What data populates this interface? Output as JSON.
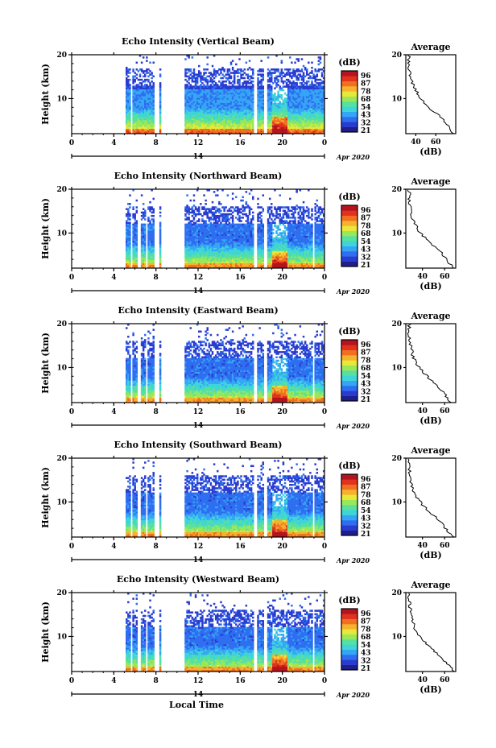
{
  "colorbar": {
    "unit": "(dB)",
    "ticks": [
      "96",
      "87",
      "78",
      "68",
      "54",
      "43",
      "32",
      "21"
    ],
    "colors": [
      "#1e1e8c",
      "#2a3ccf",
      "#2f6ef0",
      "#35a6f5",
      "#3fd4d8",
      "#57e0a0",
      "#9ae85a",
      "#e8e83a",
      "#f6b22e",
      "#f07020",
      "#e0321e",
      "#b4141e"
    ]
  },
  "x_axis": {
    "ticks": [
      "0",
      "4",
      "8",
      "12",
      "16",
      "20",
      "0"
    ],
    "date_label": "14",
    "month_label": "Apr 2020",
    "xlabel": "Local Time"
  },
  "y_axis": {
    "ylabel": "Height (km)",
    "ticks": [
      "20",
      "10"
    ]
  },
  "profile": {
    "title": "Average",
    "xlabel": "(dB)",
    "yticks": [
      "20",
      "10"
    ]
  },
  "chart_data": [
    {
      "type": "heatmap",
      "title": "Echo Intensity (Vertical Beam)",
      "x_range_hours": [
        0,
        24
      ],
      "y_range_km": [
        2,
        20
      ],
      "gaps_hours": [
        [
          0,
          5.2
        ],
        [
          5.6,
          5.8
        ],
        [
          7.9,
          8.3
        ],
        [
          8.5,
          10.8
        ],
        [
          17.3,
          17.6
        ],
        [
          18.3,
          18.6
        ]
      ],
      "echo_top_km": 17,
      "profile": {
        "type": "line",
        "xticks": [
          "40",
          "60"
        ],
        "xlim": [
          30,
          80
        ],
        "height_km": [
          2,
          4,
          6,
          8,
          10,
          12,
          14,
          16,
          18,
          20
        ],
        "db": [
          78,
          72,
          64,
          52,
          45,
          40,
          36,
          34,
          33,
          33
        ]
      }
    },
    {
      "type": "heatmap",
      "title": "Echo Intensity (Northward Beam)",
      "x_range_hours": [
        0,
        24
      ],
      "y_range_km": [
        2,
        20
      ],
      "gaps_hours": [
        [
          0,
          5.2
        ],
        [
          5.6,
          5.8
        ],
        [
          6.3,
          6.5
        ],
        [
          7.0,
          7.2
        ],
        [
          7.9,
          8.3
        ],
        [
          8.5,
          10.8
        ],
        [
          17.3,
          17.6
        ],
        [
          18.3,
          18.6
        ],
        [
          22.8,
          23.1
        ]
      ],
      "echo_top_km": 16,
      "profile": {
        "type": "line",
        "xticks": [
          "40",
          "60"
        ],
        "xlim": [
          25,
          70
        ],
        "height_km": [
          2,
          4,
          6,
          8,
          10,
          12,
          14,
          16,
          18,
          20
        ],
        "db": [
          68,
          62,
          55,
          46,
          38,
          33,
          30,
          29,
          28,
          28
        ]
      }
    },
    {
      "type": "heatmap",
      "title": "Echo Intensity (Eastward Beam)",
      "x_range_hours": [
        0,
        24
      ],
      "y_range_km": [
        2,
        20
      ],
      "gaps_hours": [
        [
          0,
          5.2
        ],
        [
          5.6,
          5.8
        ],
        [
          6.3,
          6.5
        ],
        [
          7.0,
          7.2
        ],
        [
          7.9,
          8.3
        ],
        [
          8.5,
          10.8
        ],
        [
          17.3,
          17.6
        ],
        [
          18.3,
          18.6
        ],
        [
          22.8,
          23.1
        ]
      ],
      "echo_top_km": 16,
      "profile": {
        "type": "line",
        "xticks": [
          "40",
          "60"
        ],
        "xlim": [
          25,
          70
        ],
        "height_km": [
          2,
          4,
          6,
          8,
          10,
          12,
          14,
          16,
          18,
          20
        ],
        "db": [
          66,
          60,
          53,
          44,
          37,
          32,
          30,
          29,
          28,
          28
        ]
      }
    },
    {
      "type": "heatmap",
      "title": "Echo Intensity (Southward Beam)",
      "x_range_hours": [
        0,
        24
      ],
      "y_range_km": [
        2,
        20
      ],
      "gaps_hours": [
        [
          0,
          5.2
        ],
        [
          5.6,
          5.8
        ],
        [
          6.3,
          6.5
        ],
        [
          7.0,
          7.2
        ],
        [
          7.9,
          8.3
        ],
        [
          8.5,
          10.8
        ],
        [
          17.3,
          17.6
        ],
        [
          18.3,
          18.6
        ],
        [
          22.8,
          23.1
        ]
      ],
      "echo_top_km": 16,
      "profile": {
        "type": "line",
        "xticks": [
          "40",
          "60"
        ],
        "xlim": [
          25,
          70
        ],
        "height_km": [
          2,
          4,
          6,
          8,
          10,
          12,
          14,
          16,
          18,
          20
        ],
        "db": [
          67,
          61,
          54,
          45,
          38,
          33,
          30,
          29,
          28,
          28
        ]
      }
    },
    {
      "type": "heatmap",
      "title": "Echo Intensity (Westward Beam)",
      "x_range_hours": [
        0,
        24
      ],
      "y_range_km": [
        2,
        20
      ],
      "gaps_hours": [
        [
          0,
          5.2
        ],
        [
          5.6,
          5.8
        ],
        [
          6.3,
          6.5
        ],
        [
          7.0,
          7.2
        ],
        [
          7.9,
          8.3
        ],
        [
          8.5,
          10.8
        ],
        [
          17.3,
          17.6
        ],
        [
          18.3,
          18.6
        ],
        [
          22.8,
          23.1
        ]
      ],
      "echo_top_km": 16,
      "profile": {
        "type": "line",
        "xticks": [
          "40",
          "60"
        ],
        "xlim": [
          25,
          70
        ],
        "height_km": [
          2,
          4,
          6,
          8,
          10,
          12,
          14,
          16,
          18,
          20
        ],
        "db": [
          68,
          62,
          54,
          45,
          38,
          33,
          30,
          29,
          28,
          28
        ]
      }
    }
  ]
}
